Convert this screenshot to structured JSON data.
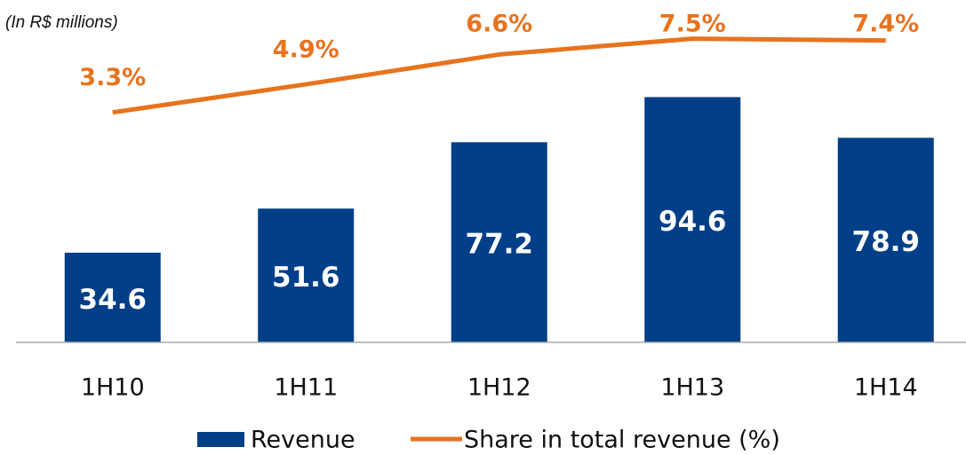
{
  "chart_data": {
    "type": "bar_line",
    "subtitle": "(In R$ millions)",
    "categories": [
      "1H10",
      "1H11",
      "1H12",
      "1H13",
      "1H14"
    ],
    "series": [
      {
        "name": "Revenue",
        "type": "bar",
        "color": "#003f87",
        "values": [
          34.6,
          51.6,
          77.2,
          94.6,
          78.9
        ]
      },
      {
        "name": "Share in total revenue (%)",
        "type": "line",
        "axis": "y2",
        "color": "#e8731e",
        "values": [
          3.3,
          4.9,
          6.6,
          7.5,
          7.4
        ],
        "value_labels": [
          "3.3%",
          "4.9%",
          "6.6%",
          "7.5%",
          "7.4%"
        ]
      }
    ],
    "ylim": [
      0,
      130
    ],
    "y2lim": [
      -9.8,
      9.4
    ],
    "legend": "bottom"
  }
}
